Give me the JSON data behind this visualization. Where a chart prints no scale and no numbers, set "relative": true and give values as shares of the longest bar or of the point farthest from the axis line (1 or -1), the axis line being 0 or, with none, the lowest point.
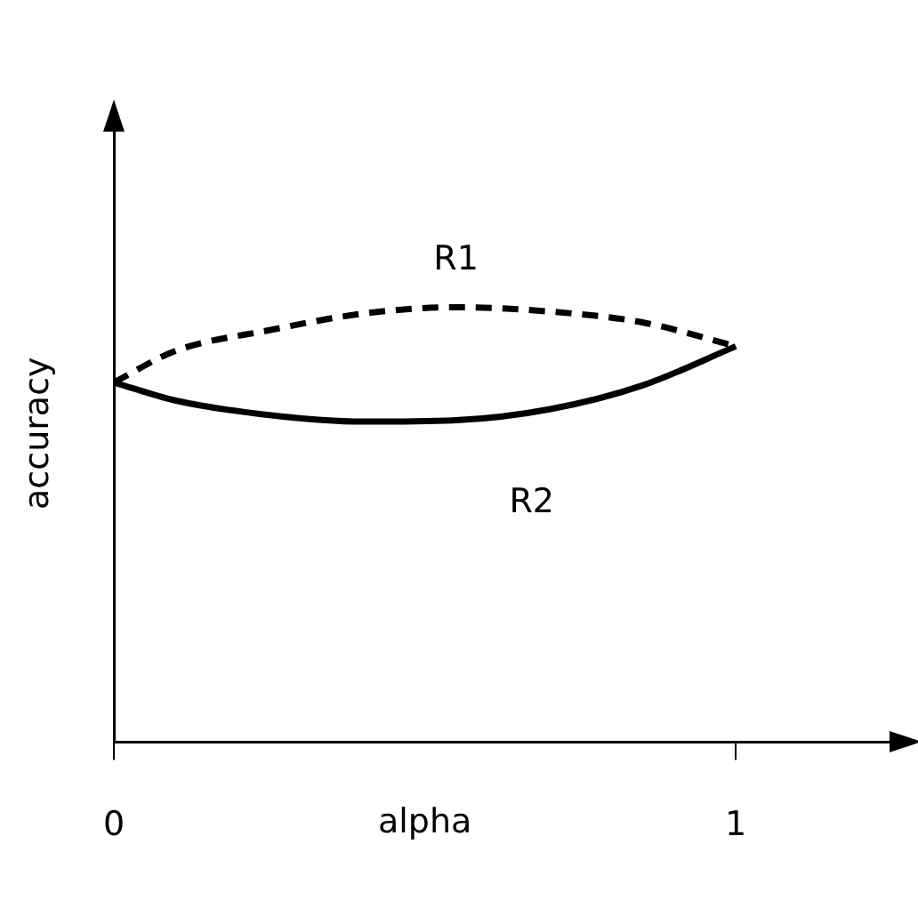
{
  "chart_data": {
    "type": "line",
    "xlabel": "alpha",
    "ylabel": "accuracy",
    "relative": true,
    "x": [
      0,
      0.1,
      0.25,
      0.4,
      0.55,
      0.7,
      0.85,
      1
    ],
    "series": [
      {
        "name": "R1",
        "color": "#000000",
        "line_style": "dashed",
        "values": [
          0.827,
          0.9,
          0.947,
          0.985,
          1.0,
          0.99,
          0.965,
          0.91
        ]
      },
      {
        "name": "R2",
        "color": "#000000",
        "line_style": "solid",
        "values": [
          0.827,
          0.785,
          0.752,
          0.737,
          0.74,
          0.765,
          0.82,
          0.91
        ]
      }
    ],
    "xlim": [
      0,
      1.27
    ],
    "xticks": [
      0,
      1
    ],
    "tick_labels": "x",
    "grid": false,
    "marker": "none",
    "legend": false
  }
}
